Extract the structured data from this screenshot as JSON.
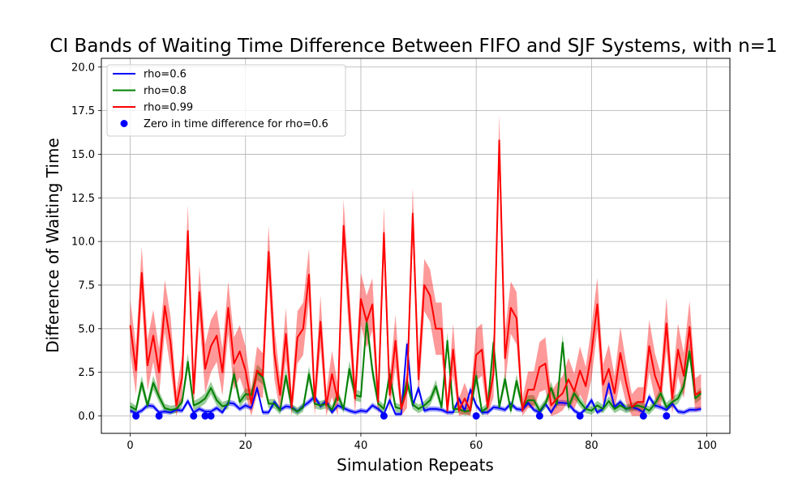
{
  "chart_data": {
    "type": "line",
    "title": "CI Bands of Waiting Time Difference Between FIFO and SJF Systems, with n=1",
    "xlabel": "Simulation Repeats",
    "ylabel": "Difference of Waiting Time",
    "xlim": [
      -5,
      104
    ],
    "ylim": [
      -1.0,
      20.5
    ],
    "xticks": [
      0,
      20,
      40,
      60,
      80,
      100
    ],
    "yticks": [
      0.0,
      2.5,
      5.0,
      7.5,
      10.0,
      12.5,
      15.0,
      17.5,
      20.0
    ],
    "xtick_labels": [
      "0",
      "20",
      "40",
      "60",
      "80",
      "100"
    ],
    "ytick_labels": [
      "0.0",
      "2.5",
      "5.0",
      "7.5",
      "10.0",
      "12.5",
      "15.0",
      "17.5",
      "20.0"
    ],
    "grid": true,
    "legend_position": "top-left",
    "series": [
      {
        "name": "rho=0.6",
        "color": "#0000ff",
        "ci_halfwidth": 0.3,
        "values": [
          0.3,
          0.15,
          0.3,
          0.6,
          0.55,
          0.2,
          0.25,
          0.2,
          0.35,
          0.3,
          0.85,
          0.2,
          0.4,
          0.25,
          0.25,
          0.45,
          0.2,
          0.75,
          0.7,
          0.4,
          0.6,
          0.45,
          1.6,
          0.2,
          0.2,
          0.8,
          0.35,
          0.55,
          0.5,
          0.25,
          0.55,
          0.8,
          1.1,
          0.55,
          0.85,
          0.2,
          0.6,
          0.45,
          0.3,
          0.2,
          0.3,
          0.25,
          0.6,
          0.4,
          0.1,
          0.9,
          0.1,
          0.1,
          4.1,
          0.6,
          1.6,
          0.3,
          0.4,
          0.4,
          0.35,
          0.2,
          0.2,
          1.0,
          0.3,
          1.5,
          0.6,
          0.2,
          0.2,
          0.5,
          0.45,
          0.35,
          0.7,
          0.4,
          0.35,
          0.75,
          0.35,
          0.2,
          0.7,
          0.2,
          0.75,
          0.75,
          0.7,
          0.3,
          0.1,
          0.4,
          0.9,
          0.2,
          0.4,
          1.85,
          0.5,
          0.8,
          0.4,
          0.5,
          0.4,
          0.2,
          1.1,
          0.6,
          0.5,
          0.35,
          0.7,
          0.25,
          0.2,
          0.35,
          0.35,
          0.4
        ]
      },
      {
        "name": "rho=0.8",
        "color": "#008000",
        "ci_halfwidth": 0.5,
        "values": [
          0.55,
          0.35,
          1.9,
          0.6,
          1.9,
          1.1,
          0.45,
          0.35,
          0.4,
          0.8,
          3.1,
          0.6,
          0.75,
          1.0,
          1.6,
          0.9,
          0.55,
          0.65,
          2.4,
          0.8,
          1.25,
          1.2,
          2.5,
          2.2,
          0.7,
          0.7,
          0.3,
          2.3,
          0.45,
          0.25,
          0.5,
          2.4,
          0.7,
          0.6,
          0.7,
          0.35,
          1.2,
          0.4,
          2.7,
          1.2,
          1.1,
          5.4,
          2.6,
          0.7,
          0.4,
          2.4,
          0.5,
          0.4,
          2.0,
          0.65,
          0.4,
          0.6,
          0.9,
          1.7,
          0.5,
          4.3,
          0.4,
          0.4,
          0.25,
          0.3,
          2.3,
          0.25,
          0.5,
          4.2,
          0.5,
          2.1,
          0.3,
          2.0,
          0.5,
          0.9,
          0.9,
          0.3,
          0.7,
          1.6,
          0.65,
          4.2,
          0.5,
          1.3,
          0.8,
          0.4,
          0.3,
          0.6,
          0.4,
          0.85,
          0.4,
          0.6,
          0.4,
          0.5,
          0.6,
          0.5,
          0.3,
          0.7,
          1.3,
          0.5,
          0.8,
          1.0,
          1.7,
          3.7,
          1.0,
          1.3
        ]
      },
      {
        "name": "rho=0.99",
        "color": "#ff0000",
        "ci_halfwidth": 1.5,
        "values": [
          5.2,
          2.6,
          8.2,
          2.9,
          4.6,
          2.5,
          6.3,
          4.2,
          0.6,
          2.2,
          10.6,
          1.3,
          7.1,
          2.7,
          4.0,
          4.6,
          2.5,
          6.2,
          3.0,
          3.7,
          2.6,
          0.7,
          2.6,
          2.3,
          9.4,
          3.6,
          1.2,
          4.7,
          0.5,
          4.5,
          5.0,
          8.1,
          0.8,
          5.4,
          0.6,
          2.4,
          0.9,
          10.9,
          5.9,
          1.0,
          6.7,
          5.4,
          6.4,
          0.8,
          10.5,
          1.2,
          4.3,
          0.4,
          1.5,
          11.6,
          2.1,
          7.5,
          6.9,
          5.0,
          5.0,
          0.3,
          3.8,
          0.3,
          1.0,
          0.3,
          3.5,
          3.8,
          0.5,
          2.4,
          15.8,
          3.3,
          6.2,
          5.6,
          0.3,
          1.5,
          1.5,
          2.8,
          3.0,
          0.6,
          1.0,
          1.3,
          2.1,
          1.4,
          2.6,
          1.7,
          3.6,
          6.4,
          1.8,
          2.7,
          1.3,
          3.6,
          1.9,
          0.5,
          0.8,
          0.8,
          4.0,
          2.3,
          1.4,
          5.3,
          1.0,
          3.8,
          2.3,
          5.1,
          1.2,
          1.4
        ]
      }
    ],
    "zero_points": {
      "name": "Zero in time difference for rho=0.6",
      "color": "#0000ff",
      "x": [
        1,
        5,
        11,
        13,
        14,
        44,
        60,
        71,
        78,
        89,
        93
      ],
      "y": [
        0,
        0,
        0,
        0,
        0,
        0,
        0,
        0,
        0,
        0,
        0
      ]
    }
  }
}
